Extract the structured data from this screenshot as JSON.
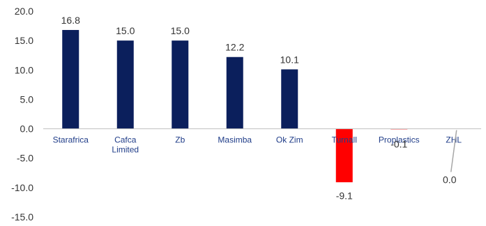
{
  "chart_data": {
    "type": "bar",
    "categories": [
      "Starafrica",
      "Cafca\nLimited",
      "Zb",
      "Masimba",
      "Ok Zim",
      "Turnall",
      "Proplastics",
      "ZHL"
    ],
    "values": [
      16.8,
      15.0,
      15.0,
      12.2,
      10.1,
      -9.1,
      -0.1,
      0.0
    ],
    "data_labels": [
      "16.8",
      "15.0",
      "15.0",
      "12.2",
      "10.1",
      "-9.1",
      "-0.1",
      "0.0"
    ],
    "ylim": [
      -15,
      20
    ],
    "yticks": [
      20,
      15,
      10,
      5,
      0,
      -5,
      -10,
      -15
    ],
    "ytick_labels": [
      "20.0",
      "15.0",
      "10.0",
      "5.0",
      "0.0",
      "-5.0",
      "-10.0",
      "-15.0"
    ],
    "title": "",
    "xlabel": "",
    "ylabel": "",
    "grid": false,
    "legend": "none",
    "colors": {
      "positive": "#0b1f5c",
      "negative": "#ff0000",
      "axis": "#bfbfbf",
      "leader": "#a6a6a6"
    }
  }
}
